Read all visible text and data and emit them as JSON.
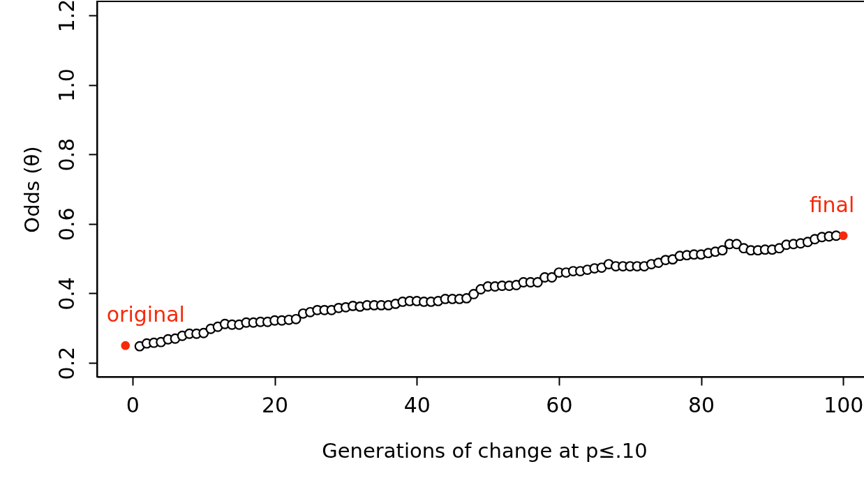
{
  "chart_data": {
    "type": "scatter",
    "xlabel": "Generations of change at p≤.10",
    "ylabel": "Odds (θ)",
    "xlim": [
      -5,
      104
    ],
    "ylim": [
      0.16,
      1.24
    ],
    "xticks": [
      0,
      20,
      40,
      60,
      80,
      100
    ],
    "yticks": [
      0.2,
      0.4,
      0.6,
      0.8,
      {
        "value": 1,
        "label": "1.0"
      },
      1.2
    ],
    "grid": false,
    "marker": "circle",
    "annotations": [
      {
        "text": "original",
        "x": -1,
        "y": 0.25
      },
      {
        "text": "final",
        "x": 100,
        "y": 0.566
      }
    ],
    "series": [
      {
        "color": "#000000",
        "x": [
          1,
          2,
          3,
          4,
          5,
          6,
          7,
          8,
          9,
          10,
          11,
          12,
          13,
          14,
          15,
          16,
          17,
          18,
          19,
          20,
          21,
          22,
          23,
          24,
          25,
          26,
          27,
          28,
          29,
          30,
          31,
          32,
          33,
          34,
          35,
          36,
          37,
          38,
          39,
          40,
          41,
          42,
          43,
          44,
          45,
          46,
          47,
          48,
          49,
          50,
          51,
          52,
          53,
          54,
          55,
          56,
          57,
          58,
          59,
          60,
          61,
          62,
          63,
          64,
          65,
          66,
          67,
          68,
          69,
          70,
          71,
          72,
          73,
          74,
          75,
          76,
          77,
          78,
          79,
          80,
          81,
          82,
          83,
          84,
          85,
          86,
          87,
          88,
          89,
          90,
          91,
          92,
          93,
          94,
          95,
          96,
          97,
          98,
          99
        ],
        "values": [
          0.248,
          0.256,
          0.258,
          0.26,
          0.268,
          0.27,
          0.278,
          0.284,
          0.284,
          0.286,
          0.298,
          0.304,
          0.312,
          0.31,
          0.31,
          0.316,
          0.316,
          0.318,
          0.318,
          0.322,
          0.322,
          0.324,
          0.326,
          0.342,
          0.346,
          0.352,
          0.352,
          0.352,
          0.358,
          0.36,
          0.364,
          0.362,
          0.366,
          0.366,
          0.366,
          0.366,
          0.37,
          0.376,
          0.378,
          0.378,
          0.376,
          0.376,
          0.378,
          0.384,
          0.384,
          0.384,
          0.386,
          0.398,
          0.412,
          0.42,
          0.42,
          0.422,
          0.422,
          0.424,
          0.432,
          0.432,
          0.432,
          0.446,
          0.446,
          0.46,
          0.46,
          0.464,
          0.464,
          0.468,
          0.472,
          0.474,
          0.484,
          0.478,
          0.478,
          0.478,
          0.478,
          0.478,
          0.484,
          0.488,
          0.496,
          0.498,
          0.508,
          0.51,
          0.512,
          0.512,
          0.516,
          0.52,
          0.524,
          0.542,
          0.542,
          0.53,
          0.524,
          0.524,
          0.526,
          0.526,
          0.53,
          0.54,
          0.542,
          0.544,
          0.548,
          0.556,
          0.562,
          0.564,
          0.566
        ]
      },
      {
        "color": "#f52a0a",
        "x": [
          -1,
          100
        ],
        "values": [
          0.25,
          0.566
        ]
      }
    ]
  }
}
